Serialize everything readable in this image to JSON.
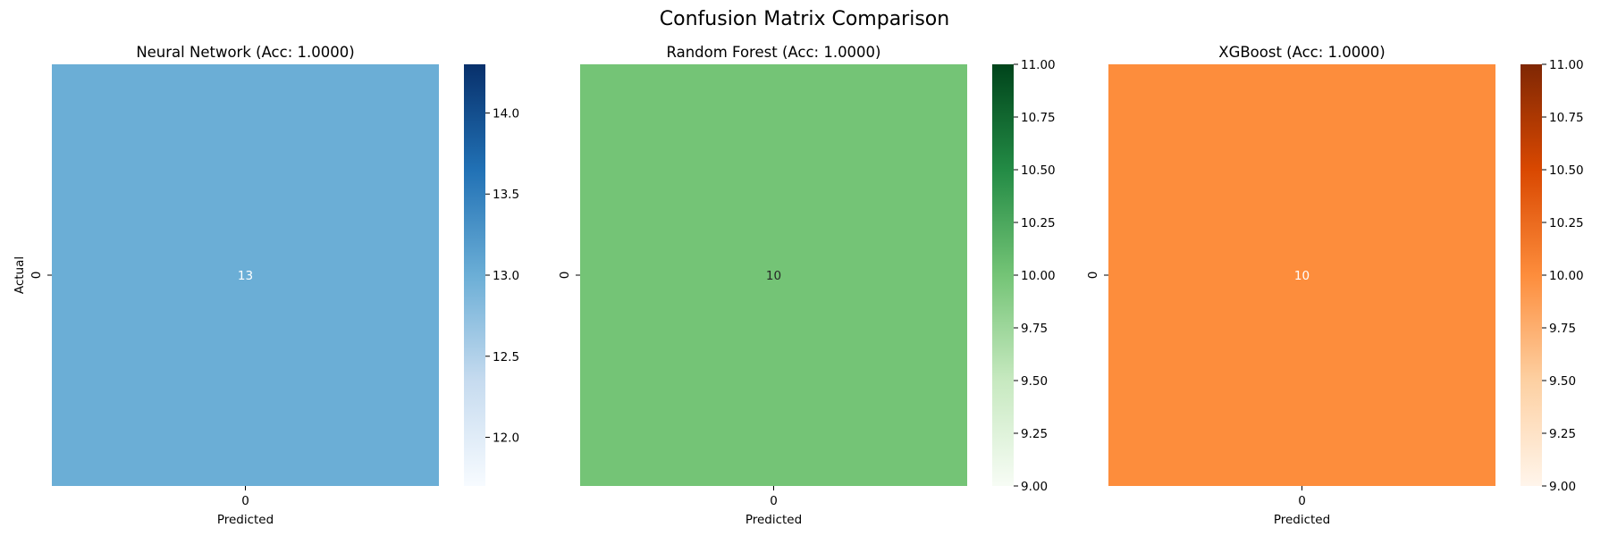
{
  "figure": {
    "title": "Confusion Matrix Comparison"
  },
  "chart_data": [
    {
      "type": "heatmap",
      "title": "Neural Network (Acc: 1.0000)",
      "xlabel": "Predicted",
      "ylabel": "Actual",
      "x_categories": [
        "0"
      ],
      "y_categories": [
        "0"
      ],
      "values": [
        [
          13
        ]
      ],
      "cell_color": "#6baed6",
      "cell_text_color": "#ffffff",
      "colormap": "Blues",
      "colorbar": {
        "range": [
          11.7,
          14.3
        ],
        "ticks": [
          12.0,
          12.5,
          13.0,
          13.5,
          14.0
        ],
        "tick_labels": [
          "12.0",
          "12.5",
          "13.0",
          "13.5",
          "14.0"
        ],
        "gradient": [
          "#f7fbff",
          "#c6dbef",
          "#6baed6",
          "#2171b5",
          "#08306b"
        ]
      }
    },
    {
      "type": "heatmap",
      "title": "Random Forest (Acc: 1.0000)",
      "xlabel": "Predicted",
      "ylabel": "",
      "x_categories": [
        "0"
      ],
      "y_categories": [
        "0"
      ],
      "values": [
        [
          10
        ]
      ],
      "cell_color": "#74c476",
      "cell_text_color": "#262626",
      "colormap": "Greens",
      "colorbar": {
        "range": [
          9.0,
          11.0
        ],
        "ticks": [
          9.0,
          9.25,
          9.5,
          9.75,
          10.0,
          10.25,
          10.5,
          10.75,
          11.0
        ],
        "tick_labels": [
          "9.00",
          "9.25",
          "9.50",
          "9.75",
          "10.00",
          "10.25",
          "10.50",
          "10.75",
          "11.00"
        ],
        "gradient": [
          "#f7fcf5",
          "#c7e9c0",
          "#74c476",
          "#238b45",
          "#00441b"
        ]
      }
    },
    {
      "type": "heatmap",
      "title": "XGBoost (Acc: 1.0000)",
      "xlabel": "Predicted",
      "ylabel": "",
      "x_categories": [
        "0"
      ],
      "y_categories": [
        "0"
      ],
      "values": [
        [
          10
        ]
      ],
      "cell_color": "#fd8d3c",
      "cell_text_color": "#ffffff",
      "colormap": "Oranges",
      "colorbar": {
        "range": [
          9.0,
          11.0
        ],
        "ticks": [
          9.0,
          9.25,
          9.5,
          9.75,
          10.0,
          10.25,
          10.5,
          10.75,
          11.0
        ],
        "tick_labels": [
          "9.00",
          "9.25",
          "9.50",
          "9.75",
          "10.00",
          "10.25",
          "10.50",
          "10.75",
          "11.00"
        ],
        "gradient": [
          "#fff5eb",
          "#fdd0a2",
          "#fd8d3c",
          "#d94801",
          "#7f2704"
        ]
      }
    }
  ]
}
